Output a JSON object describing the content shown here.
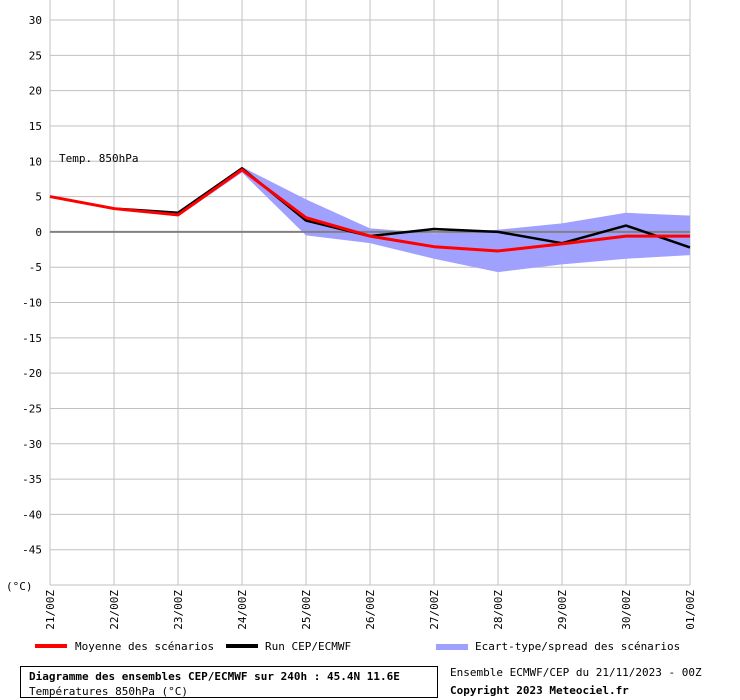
{
  "chart_data": {
    "type": "line",
    "ylabel": "(°C)",
    "annotation": "Temp. 850hPa",
    "ylim": [
      -50,
      30
    ],
    "yticks": [
      30,
      25,
      20,
      15,
      10,
      5,
      0,
      -5,
      -10,
      -15,
      -20,
      -25,
      -30,
      -35,
      -40,
      -45
    ],
    "x": [
      "21/00Z",
      "22/00Z",
      "23/00Z",
      "24/00Z",
      "25/00Z",
      "26/00Z",
      "27/00Z",
      "28/00Z",
      "29/00Z",
      "30/00Z",
      "01/00Z"
    ],
    "series": [
      {
        "name": "Moyenne des scénarios",
        "color": "#ff0000",
        "values": [
          5.0,
          3.3,
          2.4,
          8.8,
          2.0,
          -0.6,
          -2.1,
          -2.7,
          -1.7,
          -0.6,
          -0.6
        ]
      },
      {
        "name": "Run CEP/ECMWF",
        "color": "#000000",
        "values": [
          5.0,
          3.3,
          2.7,
          9.0,
          1.6,
          -0.6,
          0.4,
          0.0,
          -1.6,
          0.9,
          -2.2
        ]
      }
    ],
    "spread": {
      "name": "Ecart-type/spread des scénarios",
      "color": "#a0a0ff",
      "upper": [
        5.1,
        3.4,
        2.6,
        9.2,
        4.6,
        0.5,
        -0.2,
        0.3,
        1.2,
        2.7,
        2.3
      ],
      "lower": [
        4.9,
        3.2,
        2.2,
        8.4,
        -0.5,
        -1.6,
        -3.8,
        -5.7,
        -4.6,
        -3.8,
        -3.3
      ]
    },
    "grid": true
  },
  "footer": {
    "title": "Diagramme des ensembles CEP/ECMWF sur 240h : 45.4N 11.6E",
    "subtitle": "Températures 850hPa (°C)",
    "ensemble": "Ensemble ECMWF/CEP du 21/11/2023 - 00Z",
    "copyright": "Copyright 2023 Meteociel.fr"
  }
}
